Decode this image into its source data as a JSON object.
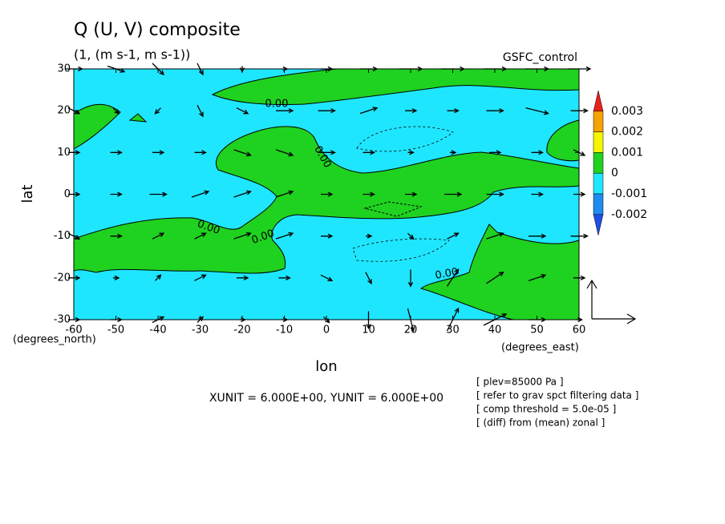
{
  "chart_data": {
    "type": "vector_contour",
    "title": "Q (U, V) composite",
    "subtitle": "(1, (m s-1, m s-1))",
    "run_label": "GSFC_control",
    "xlabel": "lon",
    "ylabel": "lat",
    "x_unit": "(degrees_east)",
    "y_unit": "(degrees_north)",
    "xlim": [
      -60,
      60
    ],
    "ylim": [
      -30,
      30
    ],
    "xticks": [
      -60,
      -50,
      -40,
      -30,
      -20,
      -10,
      0,
      10,
      20,
      30,
      40,
      50,
      60
    ],
    "yticks": [
      -30,
      -20,
      -10,
      0,
      10,
      20,
      30
    ],
    "colorbar": {
      "levels": [
        0.003,
        0.002,
        0.001,
        0,
        -0.001,
        -0.002
      ],
      "colors": [
        "#e8211a",
        "#f5a300",
        "#f5f500",
        "#1fd21f",
        "#1fe6ff",
        "#1e8cf0",
        "#1e50e6"
      ]
    },
    "contour_labels": [
      "0.00",
      "0.00",
      "0.00",
      "0.00",
      "0.00"
    ],
    "unit_note": "XUNIT = 6.000E+00, YUNIT = 6.000E+00",
    "notes": [
      "[ plev=85000 Pa ]",
      "[ refer to grav spct filtering data ]",
      "[ comp threshold = 5.0e-05 ]",
      "[ (diff) from (mean) zonal ]"
    ],
    "vectors": {
      "lon": [
        -60,
        -50,
        -40,
        -30,
        -20,
        -10,
        0,
        10,
        20,
        30,
        40,
        50,
        60
      ],
      "lat": [
        30,
        20,
        10,
        0,
        -10,
        -20,
        -30
      ],
      "u": [
        [
          3,
          3,
          2,
          1,
          0,
          1,
          2,
          3,
          4,
          4,
          4,
          4,
          4
        ],
        [
          2,
          1,
          -1,
          1,
          2,
          3,
          3,
          3,
          2,
          2,
          3,
          4,
          3
        ],
        [
          2,
          2,
          2,
          2,
          3,
          3,
          3,
          2,
          1,
          1,
          2,
          2,
          2
        ],
        [
          2,
          2,
          3,
          3,
          3,
          3,
          2,
          2,
          2,
          3,
          3,
          2,
          2
        ],
        [
          2,
          2,
          2,
          2,
          3,
          3,
          2,
          1,
          1,
          2,
          3,
          3,
          3
        ],
        [
          2,
          1,
          1,
          2,
          2,
          2,
          2,
          1,
          0,
          2,
          3,
          3,
          2
        ],
        [
          2,
          2,
          2,
          1,
          1,
          1,
          1,
          0,
          1,
          2,
          4,
          3,
          1
        ]
      ],
      "v": [
        [
          0,
          -1,
          -2,
          -2,
          -1,
          0,
          0,
          0,
          0,
          0,
          0,
          0,
          0
        ],
        [
          -1,
          -1,
          -1,
          -2,
          -1,
          0,
          0,
          1,
          0,
          0,
          0,
          -1,
          0
        ],
        [
          0,
          0,
          0,
          0,
          -1,
          -1,
          0,
          0,
          0,
          0,
          0,
          0,
          -1
        ],
        [
          0,
          0,
          0,
          1,
          1,
          1,
          0,
          0,
          0,
          0,
          0,
          0,
          0
        ],
        [
          -1,
          0,
          1,
          1,
          1,
          1,
          0,
          0,
          -1,
          1,
          1,
          0,
          0
        ],
        [
          0,
          0,
          1,
          1,
          0,
          0,
          -1,
          -2,
          -3,
          3,
          2,
          1,
          0
        ],
        [
          0,
          0,
          1,
          1,
          0,
          0,
          -1,
          -3,
          -4,
          4,
          2,
          0,
          0
        ]
      ]
    }
  }
}
